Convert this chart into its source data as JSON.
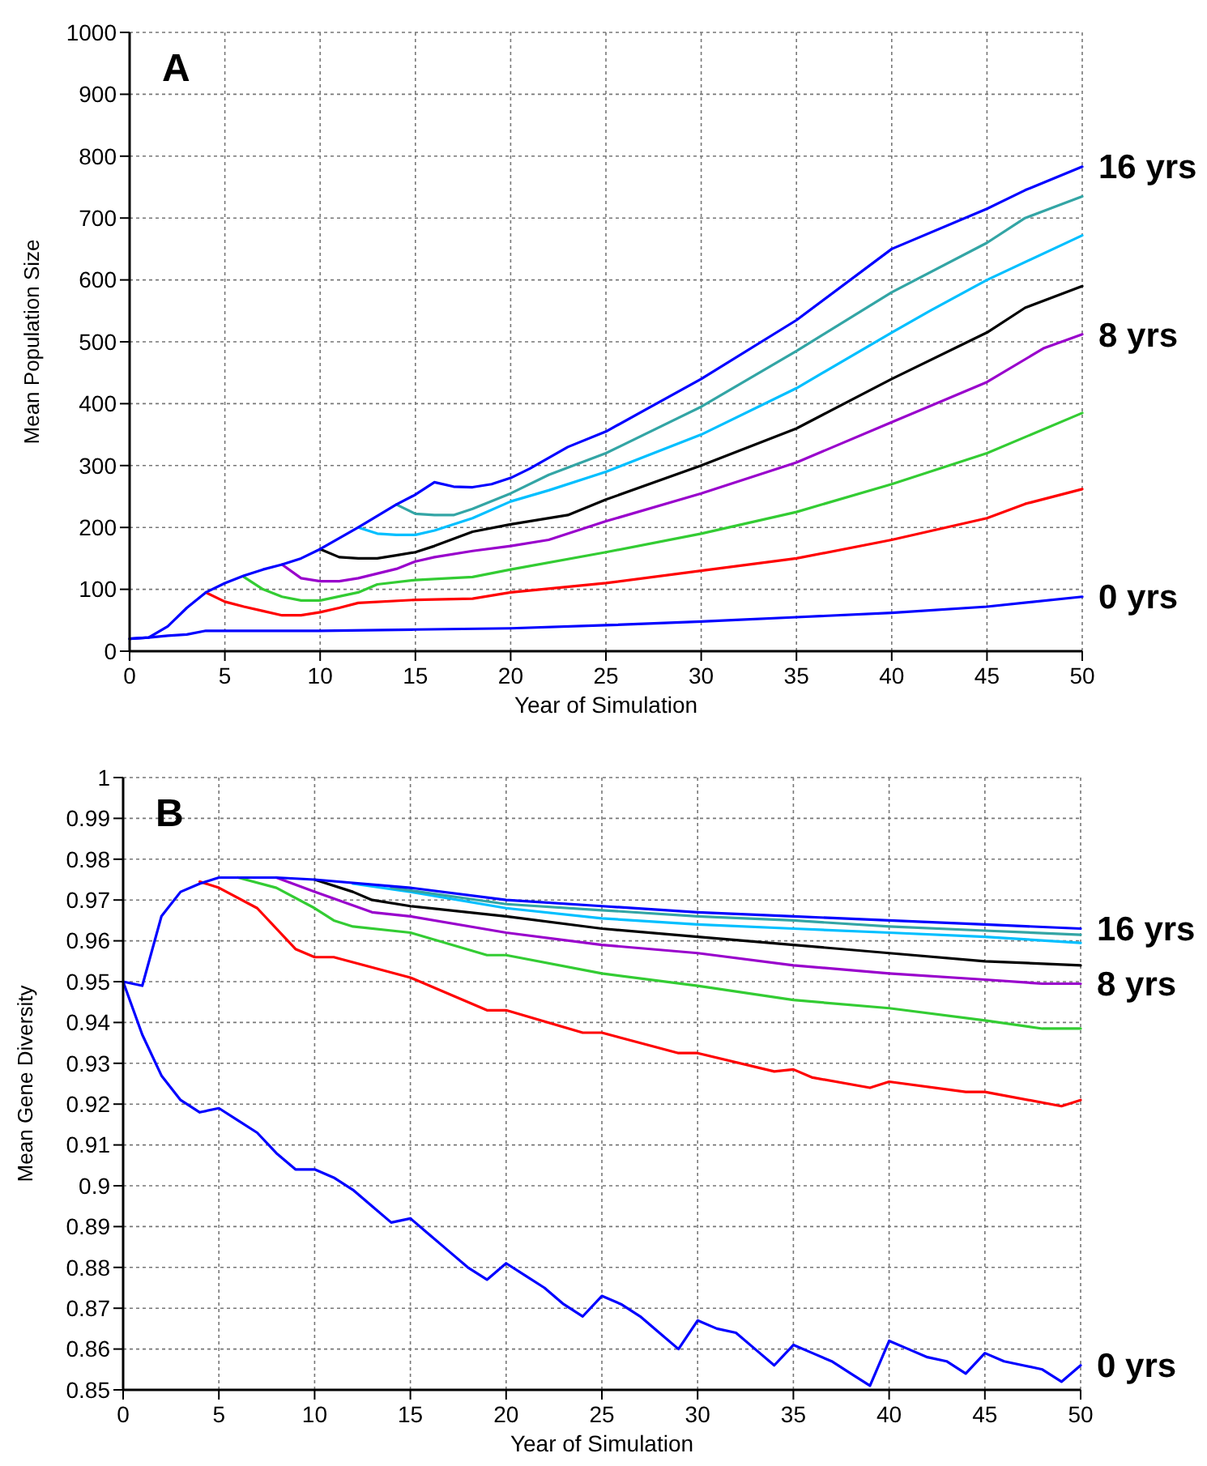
{
  "chart_data": [
    {
      "type": "line",
      "xlabel": "Year of Simulation",
      "ylabel": "Mean Population Size",
      "annotations": [
        "A"
      ],
      "xlim": [
        0,
        50
      ],
      "xticks": [
        0,
        5,
        10,
        15,
        20,
        25,
        30,
        35,
        40,
        45,
        50
      ],
      "ylim": [
        0,
        1000
      ],
      "yticks": [
        0,
        100,
        200,
        300,
        400,
        500,
        600,
        700,
        800,
        900,
        1000
      ],
      "grid": true,
      "line_style": "solid",
      "series": [
        {
          "name": "0 yrs",
          "color": "#0000ff",
          "x": [
            0,
            1,
            2,
            3,
            4,
            5,
            10,
            15,
            20,
            25,
            30,
            35,
            40,
            45,
            50
          ],
          "values": [
            20,
            22,
            25,
            27,
            33,
            33,
            33,
            35,
            37,
            42,
            48,
            55,
            62,
            72,
            88
          ]
        },
        {
          "color": "#ff0000",
          "x": [
            4,
            5,
            6,
            7,
            8,
            9,
            10,
            11,
            12,
            15,
            18,
            20,
            25,
            30,
            35,
            40,
            45,
            47,
            50
          ],
          "values": [
            95,
            80,
            72,
            65,
            58,
            58,
            63,
            70,
            78,
            83,
            85,
            95,
            110,
            130,
            150,
            180,
            215,
            238,
            262
          ]
        },
        {
          "color": "#33cc33",
          "x": [
            6,
            7,
            8,
            9,
            10,
            12,
            13,
            15,
            18,
            20,
            25,
            30,
            35,
            40,
            45,
            50
          ],
          "values": [
            120,
            100,
            88,
            82,
            82,
            95,
            108,
            115,
            120,
            132,
            160,
            190,
            225,
            270,
            320,
            385
          ]
        },
        {
          "name": "8 yrs",
          "color": "#9900cc",
          "x": [
            8,
            9,
            10,
            11,
            12,
            14,
            15,
            16,
            18,
            20,
            22,
            25,
            30,
            35,
            40,
            45,
            48,
            50
          ],
          "values": [
            140,
            118,
            113,
            113,
            118,
            133,
            145,
            152,
            162,
            170,
            180,
            210,
            255,
            305,
            370,
            435,
            490,
            512
          ]
        },
        {
          "color": "#000000",
          "x": [
            10,
            11,
            12,
            13,
            14,
            15,
            16,
            18,
            20,
            23,
            25,
            30,
            35,
            40,
            45,
            47,
            50
          ],
          "values": [
            165,
            152,
            150,
            150,
            155,
            160,
            170,
            193,
            205,
            220,
            245,
            300,
            360,
            440,
            515,
            555,
            590
          ]
        },
        {
          "color": "#00bfff",
          "x": [
            12,
            13,
            14,
            15,
            16,
            18,
            20,
            22,
            25,
            30,
            35,
            40,
            42,
            45,
            50
          ],
          "values": [
            200,
            190,
            188,
            188,
            195,
            215,
            242,
            260,
            290,
            350,
            425,
            515,
            550,
            600,
            672
          ]
        },
        {
          "color": "#33a5a5",
          "x": [
            14,
            15,
            16,
            17,
            18,
            20,
            22,
            25,
            30,
            35,
            40,
            45,
            47,
            50
          ],
          "values": [
            237,
            222,
            220,
            220,
            230,
            255,
            285,
            320,
            395,
            485,
            580,
            660,
            700,
            735
          ]
        },
        {
          "name": "16 yrs",
          "color": "#0000ff",
          "x": [
            0,
            1,
            2,
            3,
            4,
            5,
            6,
            7,
            8,
            9,
            10,
            12,
            14,
            15,
            16,
            17,
            18,
            19,
            20,
            21,
            23,
            25,
            30,
            35,
            40,
            45,
            47,
            50
          ],
          "values": [
            20,
            22,
            40,
            70,
            95,
            110,
            122,
            132,
            140,
            150,
            165,
            200,
            237,
            253,
            273,
            266,
            265,
            270,
            280,
            295,
            330,
            355,
            440,
            535,
            650,
            715,
            745,
            783
          ]
        }
      ]
    },
    {
      "type": "line",
      "xlabel": "Year of Simulation",
      "ylabel": "Mean Gene Diversity",
      "annotations": [
        "B"
      ],
      "xlim": [
        0,
        50
      ],
      "xticks": [
        0,
        5,
        10,
        15,
        20,
        25,
        30,
        35,
        40,
        45,
        50
      ],
      "ylim": [
        0.85,
        1
      ],
      "yticks": [
        0.85,
        0.86,
        0.87,
        0.88,
        0.89,
        0.9,
        0.91,
        0.92,
        0.93,
        0.94,
        0.95,
        0.96,
        0.97,
        0.98,
        0.99,
        1
      ],
      "grid": true,
      "line_style": "solid",
      "series": [
        {
          "name": "0 yrs",
          "color": "#0000ff",
          "x": [
            0,
            1,
            2,
            3,
            4,
            5,
            6,
            7,
            8,
            9,
            10,
            11,
            12,
            13,
            14,
            15,
            16,
            17,
            18,
            19,
            20,
            21,
            22,
            23,
            24,
            25,
            26,
            27,
            28,
            29,
            30,
            31,
            32,
            33,
            34,
            35,
            36,
            37,
            38,
            39,
            40,
            41,
            42,
            43,
            44,
            45,
            46,
            47,
            48,
            49,
            50
          ],
          "values": [
            0.95,
            0.937,
            0.927,
            0.921,
            0.918,
            0.919,
            0.916,
            0.913,
            0.908,
            0.904,
            0.904,
            0.902,
            0.899,
            0.895,
            0.891,
            0.892,
            0.888,
            0.884,
            0.88,
            0.877,
            0.881,
            0.878,
            0.875,
            0.871,
            0.868,
            0.873,
            0.871,
            0.868,
            0.864,
            0.86,
            0.867,
            0.865,
            0.864,
            0.86,
            0.856,
            0.861,
            0.859,
            0.857,
            0.854,
            0.851,
            0.862,
            0.86,
            0.858,
            0.857,
            0.854,
            0.859,
            0.857,
            0.856,
            0.855,
            0.852,
            0.856
          ]
        },
        {
          "color": "#ff0000",
          "x": [
            4,
            5,
            7,
            9,
            10,
            11,
            15,
            19,
            20,
            24,
            25,
            29,
            30,
            34,
            35,
            36,
            39,
            40,
            44,
            45,
            49,
            50
          ],
          "values": [
            0.9745,
            0.973,
            0.968,
            0.958,
            0.956,
            0.956,
            0.951,
            0.943,
            0.943,
            0.9375,
            0.9375,
            0.9325,
            0.9325,
            0.928,
            0.9285,
            0.9265,
            0.924,
            0.9255,
            0.923,
            0.923,
            0.9195,
            0.921
          ]
        },
        {
          "color": "#33cc33",
          "x": [
            6,
            8,
            10,
            11,
            12,
            15,
            19,
            20,
            25,
            30,
            35,
            40,
            45,
            48,
            50
          ],
          "values": [
            0.9755,
            0.973,
            0.968,
            0.965,
            0.9635,
            0.962,
            0.9565,
            0.9565,
            0.952,
            0.949,
            0.9455,
            0.9435,
            0.9405,
            0.9385,
            0.9385
          ]
        },
        {
          "name": "8 yrs",
          "color": "#9900cc",
          "x": [
            8,
            10,
            13,
            15,
            20,
            25,
            30,
            35,
            40,
            45,
            48,
            50
          ],
          "values": [
            0.9755,
            0.972,
            0.967,
            0.966,
            0.962,
            0.959,
            0.957,
            0.954,
            0.952,
            0.9505,
            0.9495,
            0.9495
          ]
        },
        {
          "color": "#000000",
          "x": [
            10,
            12,
            13,
            15,
            20,
            25,
            30,
            35,
            40,
            45,
            50
          ],
          "values": [
            0.975,
            0.972,
            0.97,
            0.9685,
            0.966,
            0.963,
            0.961,
            0.959,
            0.957,
            0.955,
            0.954
          ]
        },
        {
          "color": "#00bfff",
          "x": [
            12,
            15,
            20,
            25,
            30,
            35,
            40,
            45,
            50
          ],
          "values": [
            0.974,
            0.972,
            0.968,
            0.9655,
            0.964,
            0.963,
            0.962,
            0.961,
            0.9595
          ]
        },
        {
          "color": "#33a5a5",
          "x": [
            14,
            20,
            25,
            30,
            35,
            40,
            45,
            50
          ],
          "values": [
            0.973,
            0.969,
            0.9675,
            0.966,
            0.965,
            0.9635,
            0.9625,
            0.9615
          ]
        },
        {
          "name": "16 yrs",
          "color": "#0000ff",
          "x": [
            0,
            1,
            2,
            3,
            4,
            5,
            6,
            7,
            8,
            10,
            15,
            20,
            25,
            30,
            35,
            40,
            45,
            50
          ],
          "values": [
            0.95,
            0.949,
            0.966,
            0.972,
            0.974,
            0.9755,
            0.9755,
            0.9755,
            0.9755,
            0.975,
            0.973,
            0.97,
            0.9685,
            0.967,
            0.966,
            0.965,
            0.964,
            0.963
          ]
        }
      ]
    }
  ]
}
